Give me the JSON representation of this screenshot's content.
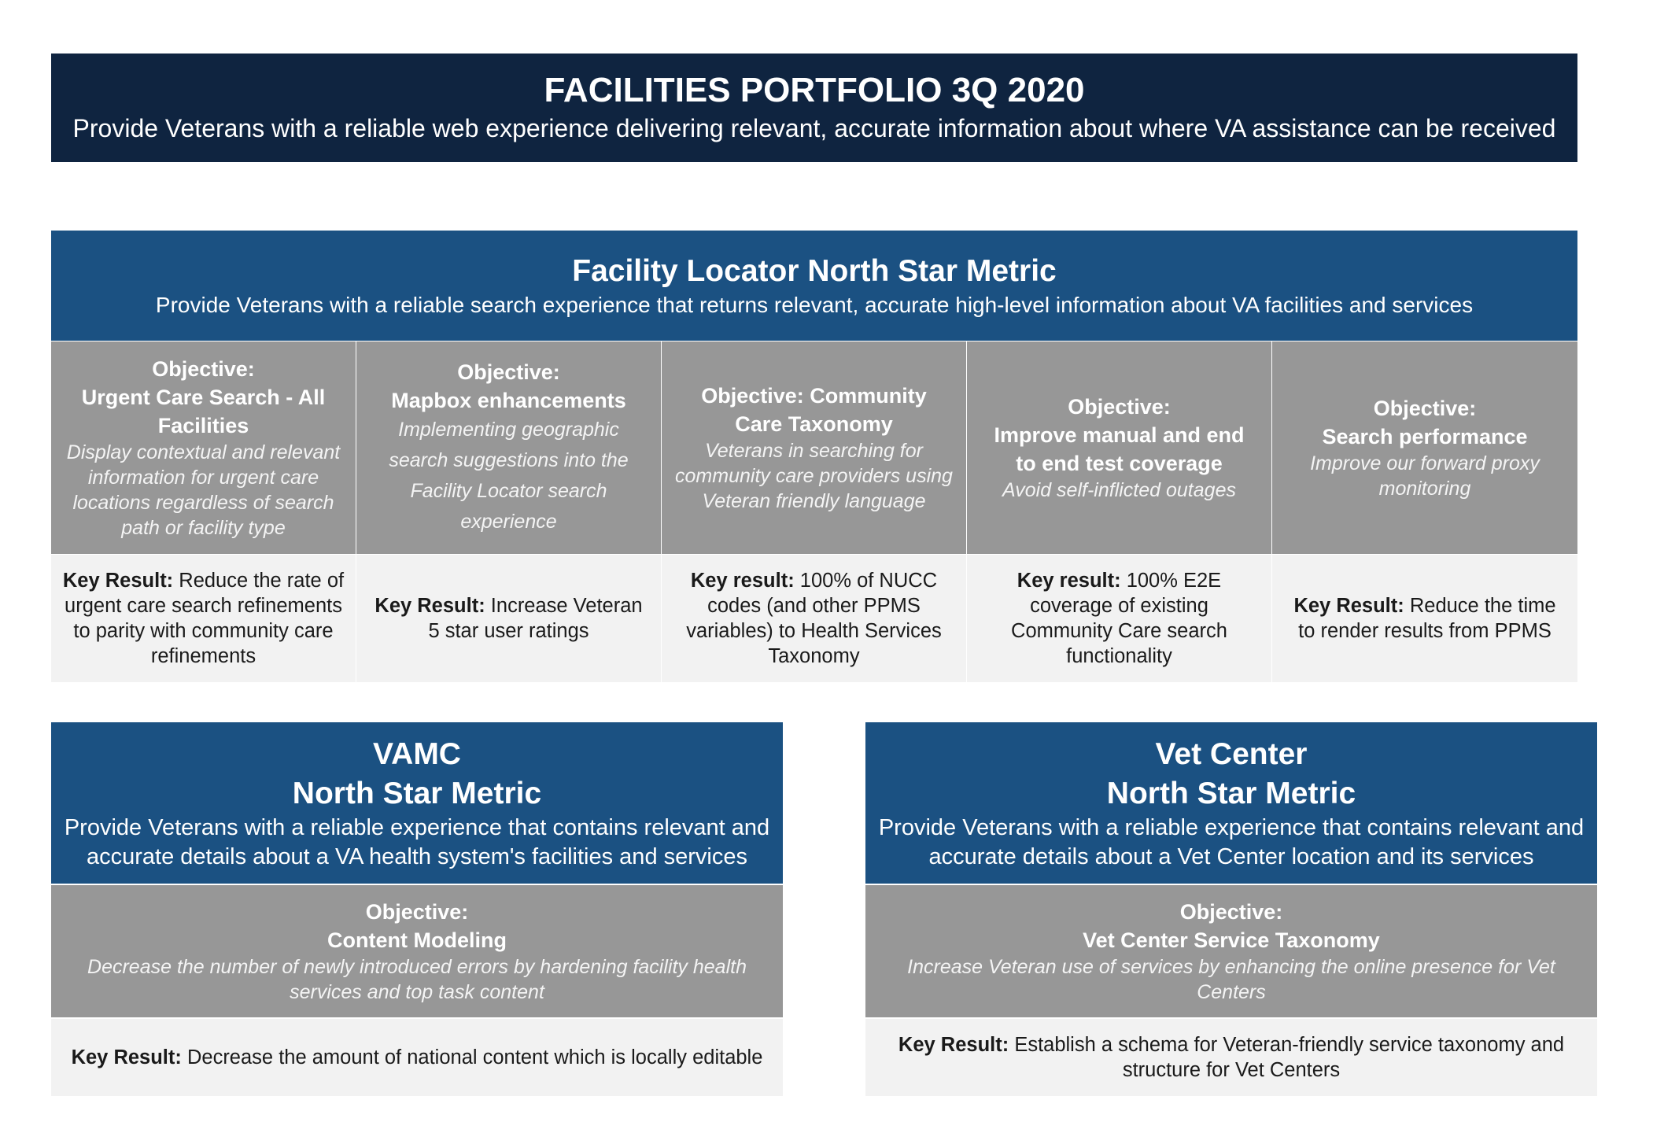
{
  "portfolio": {
    "title": "FACILITIES PORTFOLIO 3Q 2020",
    "subtitle": "Provide Veterans with a reliable web experience  delivering relevant, accurate information about where VA assistance can be received"
  },
  "facility_locator": {
    "title": "Facility Locator North Star Metric",
    "subtitle": "Provide Veterans with a reliable search experience that returns relevant, accurate high-level information about VA facilities and services",
    "objectives": [
      {
        "heading_lines": [
          "Objective:",
          "Urgent Care Search - All",
          "Facilities"
        ],
        "description": "Display contextual and relevant information for urgent care locations regardless of search path or facility type",
        "kr_label": "Key Result:",
        "kr_text": "Reduce the rate of urgent care search refinements to parity with community care refinements"
      },
      {
        "heading_lines": [
          "Objective:",
          "Mapbox enhancements"
        ],
        "description": "Implementing geographic search suggestions into the Facility Locator search experience",
        "kr_label": "Key Result:",
        "kr_text": "Increase Veteran 5 star user ratings"
      },
      {
        "heading_lines": [
          "Objective: Community",
          "Care Taxonomy"
        ],
        "description": "Veterans in searching for community care providers using Veteran friendly language",
        "kr_label": "Key result:",
        "kr_text": "100% of NUCC codes (and other PPMS variables) to Health Services Taxonomy"
      },
      {
        "heading_lines": [
          "Objective:",
          "Improve manual and end",
          "to end test coverage"
        ],
        "description": "Avoid self-inflicted outages",
        "kr_label": "Key result:",
        "kr_text": "100% E2E coverage of existing Community Care search functionality"
      },
      {
        "heading_lines": [
          "Objective:",
          "Search performance"
        ],
        "description": "Improve our forward proxy monitoring",
        "kr_label": "Key Result:",
        "kr_text": "Reduce the time to render results from PPMS"
      }
    ]
  },
  "vamc": {
    "title_line1": "VAMC",
    "title_line2": "North Star Metric",
    "subtitle": "Provide Veterans with a reliable experience that contains relevant and accurate details about a VA health system's facilities and services",
    "objective_label": "Objective:",
    "objective_title": "Content Modeling",
    "objective_desc": "Decrease the number of newly introduced errors by hardening facility health services and top task content",
    "kr_label": "Key Result:",
    "kr_text": "Decrease the amount of national content which is locally editable"
  },
  "vet_center": {
    "title_line1": "Vet Center",
    "title_line2": "North Star Metric",
    "subtitle": "Provide Veterans with a reliable experience that contains relevant and accurate details about a Vet Center location and its services",
    "objective_label": "Objective:",
    "objective_title": "Vet Center Service Taxonomy",
    "objective_desc": "Increase Veteran use of services by enhancing the online presence for Vet Centers",
    "kr_label": "Key Result:",
    "kr_text": "Establish a schema for Veteran-friendly service taxonomy and structure for Vet Centers"
  }
}
